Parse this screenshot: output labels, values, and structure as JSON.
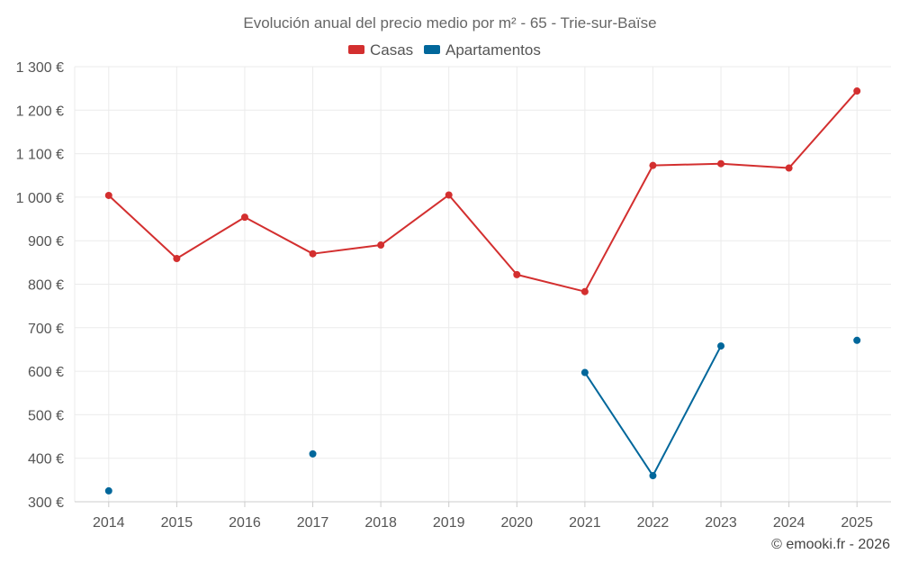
{
  "chart_data": {
    "type": "line",
    "title": "Evolución anual del precio medio por m² - 65 - Trie-sur-Baïse",
    "xlabel": "",
    "ylabel": "",
    "categories": [
      "2014",
      "2015",
      "2016",
      "2017",
      "2018",
      "2019",
      "2020",
      "2021",
      "2022",
      "2023",
      "2024",
      "2025"
    ],
    "ylim": [
      300,
      1300
    ],
    "yticks": [
      300,
      400,
      500,
      600,
      700,
      800,
      900,
      1000,
      1100,
      1200,
      1300
    ],
    "ytick_labels": [
      "300 €",
      "400 €",
      "500 €",
      "600 €",
      "700 €",
      "800 €",
      "900 €",
      "1 000 €",
      "1 100 €",
      "1 200 €",
      "1 300 €"
    ],
    "grid": true,
    "legend_position": "top-center",
    "series": [
      {
        "name": "Casas",
        "color": "#d32f2f",
        "values": [
          1004,
          859,
          954,
          870,
          890,
          1005,
          822,
          783,
          1073,
          1077,
          1067,
          1244
        ]
      },
      {
        "name": "Apartamentos",
        "color": "#01679b",
        "values": [
          325,
          null,
          null,
          410,
          null,
          null,
          null,
          597,
          360,
          658,
          null,
          671
        ]
      }
    ],
    "credit": "© emooki.fr - 2026"
  }
}
